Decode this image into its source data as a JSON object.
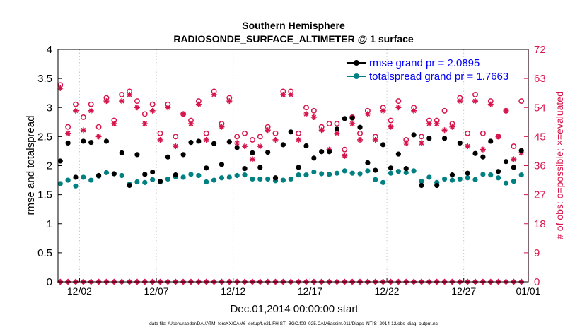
{
  "chart_data": {
    "type": "scatter",
    "title": "Southern Hemisphere",
    "subtitle": "RADIOSONDE_SURFACE_ALTIMETER @ 1 surface",
    "xlabel": "Dec.01,2014 00:00:00 start",
    "ylabel": "rmse and totalspread",
    "y2label": "# of obs: o=possible; ×=evaluated",
    "footnote": "data file: /Users/raeder/DAI/ATM_forcXX/CAM6_setup/f.e21.FHIST_BGC.f09_025.CAM6assim.011/Diags_NTrS_2014-12/obs_diag_output.nc",
    "xlim": [
      0.6,
      31.2
    ],
    "ylim": [
      0,
      4
    ],
    "y2lim": [
      0,
      72
    ],
    "x_ticks": [
      {
        "pos": 2,
        "label": "12/02"
      },
      {
        "pos": 7,
        "label": "12/07"
      },
      {
        "pos": 12,
        "label": "12/12"
      },
      {
        "pos": 17,
        "label": "12/17"
      },
      {
        "pos": 22,
        "label": "12/22"
      },
      {
        "pos": 27,
        "label": "12/27"
      },
      {
        "pos": 32,
        "label": "01/01"
      }
    ],
    "y_ticks": [
      "0",
      "0.5",
      "1",
      "1.5",
      "2",
      "2.5",
      "3",
      "3.5",
      "4"
    ],
    "y2_ticks": [
      "0",
      "9",
      "18",
      "27",
      "36",
      "45",
      "54",
      "63",
      "72"
    ],
    "legend": [
      {
        "label": "rmse grand pr = 2.0895",
        "color": "#000000"
      },
      {
        "label": "totalspread grand pr = 1.7663",
        "color": "#008080"
      }
    ],
    "series": [
      {
        "name": "rmse",
        "axis": "left",
        "color": "#000000",
        "x": [
          0.75,
          1.25,
          1.75,
          2.25,
          2.75,
          3.25,
          3.75,
          4.25,
          4.75,
          5.25,
          5.75,
          6.25,
          6.75,
          7.25,
          7.75,
          8.25,
          8.75,
          9.25,
          9.75,
          10.25,
          10.75,
          11.25,
          11.75,
          12.25,
          12.75,
          13.25,
          13.75,
          14.25,
          14.75,
          15.25,
          15.75,
          16.25,
          16.75,
          17.25,
          17.75,
          18.25,
          18.75,
          19.25,
          19.75,
          20.25,
          20.75,
          21.25,
          21.75,
          22.25,
          22.75,
          23.25,
          23.75,
          24.25,
          24.75,
          25.25,
          25.75,
          26.25,
          26.75,
          27.25,
          27.75,
          28.25,
          28.75,
          29.25,
          29.75,
          30.25,
          30.75
        ],
        "values": [
          2.08,
          2.39,
          1.8,
          2.42,
          2.4,
          1.83,
          2.42,
          1.86,
          2.22,
          1.66,
          2.19,
          1.85,
          1.89,
          1.73,
          2.15,
          1.84,
          2.19,
          2.4,
          2.42,
          1.96,
          2.38,
          2.02,
          2.41,
          2.31,
          1.95,
          2.22,
          1.97,
          2.23,
          1.79,
          2.36,
          2.58,
          1.97,
          2.34,
          2.13,
          2.24,
          2.24,
          2.63,
          2.81,
          2.82,
          2.66,
          2.05,
          1.92,
          2.36,
          1.96,
          2.2,
          1.95,
          2.53,
          1.66,
          2.47,
          1.66,
          2.47,
          1.84,
          2.39,
          1.87,
          2.21,
          2.15,
          2.42,
          1.9,
          2.07,
          1.97,
          2.26
        ]
      },
      {
        "name": "totalspread",
        "axis": "left",
        "color": "#008080",
        "x": [
          0.75,
          1.25,
          1.75,
          2.25,
          2.75,
          3.25,
          3.75,
          4.25,
          4.75,
          5.25,
          5.75,
          6.25,
          6.75,
          7.25,
          7.75,
          8.25,
          8.75,
          9.25,
          9.75,
          10.25,
          10.75,
          11.25,
          11.75,
          12.25,
          12.75,
          13.25,
          13.75,
          14.25,
          14.75,
          15.25,
          15.75,
          16.25,
          16.75,
          17.25,
          17.75,
          18.25,
          18.75,
          19.25,
          19.75,
          20.25,
          20.75,
          21.25,
          21.75,
          22.25,
          22.75,
          23.25,
          23.75,
          24.25,
          24.75,
          25.25,
          25.75,
          26.25,
          26.75,
          27.25,
          27.75,
          28.25,
          28.75,
          29.25,
          29.75,
          30.25,
          30.75
        ],
        "values": [
          1.69,
          1.75,
          1.65,
          1.8,
          1.75,
          1.82,
          1.88,
          1.86,
          1.83,
          1.68,
          1.72,
          1.71,
          1.76,
          1.72,
          1.77,
          1.81,
          1.8,
          1.85,
          1.83,
          1.72,
          1.75,
          1.79,
          1.8,
          1.83,
          1.84,
          1.77,
          1.77,
          1.77,
          1.74,
          1.75,
          1.77,
          1.84,
          1.84,
          1.89,
          1.86,
          1.85,
          1.87,
          1.91,
          1.87,
          1.86,
          1.91,
          1.76,
          1.71,
          1.87,
          1.9,
          1.88,
          1.91,
          1.73,
          1.8,
          1.71,
          1.77,
          1.75,
          1.77,
          1.79,
          1.76,
          1.85,
          1.84,
          1.79,
          1.7,
          1.73,
          1.84
        ]
      },
      {
        "name": "obs possible",
        "axis": "right",
        "color": "#d6154c",
        "x": [
          0.75,
          1.25,
          1.75,
          2.25,
          2.75,
          3.25,
          3.75,
          4.25,
          4.75,
          5.25,
          5.75,
          6.25,
          6.75,
          7.25,
          7.75,
          8.25,
          8.75,
          9.25,
          9.75,
          10.25,
          10.75,
          11.25,
          11.75,
          12.25,
          12.75,
          13.25,
          13.75,
          14.25,
          14.75,
          15.25,
          15.75,
          16.25,
          16.75,
          17.25,
          17.75,
          18.25,
          18.75,
          19.25,
          19.75,
          20.25,
          20.75,
          21.25,
          21.75,
          22.25,
          22.75,
          23.25,
          23.75,
          24.25,
          24.75,
          25.25,
          25.75,
          26.25,
          26.75,
          27.25,
          27.75,
          28.25,
          28.75,
          29.25,
          29.75,
          30.25,
          30.75
        ],
        "values": [
          61,
          48,
          55,
          51,
          55,
          48,
          57,
          50,
          58,
          59,
          56,
          52,
          55,
          46,
          55,
          45,
          52,
          50,
          56,
          46,
          59,
          49,
          57,
          45,
          46,
          44,
          45,
          48,
          46,
          59,
          59,
          46,
          54,
          53,
          48,
          49,
          49,
          41,
          51,
          46,
          53,
          45,
          54,
          50,
          56,
          44,
          54,
          45,
          50,
          50,
          53,
          49,
          57,
          46,
          58,
          46,
          56,
          45,
          53,
          42,
          56
        ]
      },
      {
        "name": "obs evaluated",
        "axis": "right",
        "color": "#d6154c",
        "x": [
          0.75,
          1.25,
          1.75,
          2.25,
          2.75,
          3.25,
          3.75,
          4.25,
          4.75,
          5.25,
          5.75,
          6.25,
          6.75,
          7.25,
          7.75,
          8.25,
          8.75,
          9.25,
          9.75,
          10.25,
          10.75,
          11.25,
          11.75,
          12.25,
          12.75,
          13.25,
          13.75,
          14.25,
          14.75,
          15.25,
          15.75,
          16.25,
          16.75,
          17.25,
          17.75,
          18.25,
          18.75,
          19.25,
          19.75,
          20.25,
          20.75,
          21.25,
          21.75,
          22.25,
          22.75,
          23.25,
          23.75,
          24.25,
          24.75,
          25.25,
          25.75,
          26.25,
          26.75,
          27.25,
          27.75,
          28.25,
          28.75,
          29.25,
          29.75,
          30.25,
          30.75
        ],
        "values": [
          60,
          46,
          53,
          47,
          53,
          45,
          56,
          49,
          56,
          58,
          54,
          49,
          53,
          44,
          54,
          42,
          52,
          49,
          55,
          44,
          58,
          48,
          56,
          43,
          42,
          38,
          42,
          47,
          44,
          58,
          58,
          44,
          52,
          51,
          47,
          41,
          46,
          39,
          49,
          44,
          52,
          44,
          53,
          48,
          54,
          43,
          53,
          43,
          49,
          49,
          47,
          48,
          56,
          42,
          56,
          41,
          55,
          45,
          53,
          38,
          40
        ]
      },
      {
        "name": "obs used (bottom)",
        "axis": "right",
        "color": "#d6154c",
        "x": [
          0.75,
          1.25,
          1.75,
          2.25,
          2.75,
          3.25,
          3.75,
          4.25,
          4.75,
          5.25,
          5.75,
          6.25,
          6.75,
          7.25,
          7.75,
          8.25,
          8.75,
          9.25,
          9.75,
          10.25,
          10.75,
          11.25,
          11.75,
          12.25,
          12.75,
          13.25,
          13.75,
          14.25,
          14.75,
          15.25,
          15.75,
          16.25,
          16.75,
          17.25,
          17.75,
          18.25,
          18.75,
          19.25,
          19.75,
          20.25,
          20.75,
          21.25,
          21.75,
          22.25,
          22.75,
          23.25,
          23.75,
          24.25,
          24.75,
          25.25,
          25.75,
          26.25,
          26.75,
          27.25,
          27.75,
          28.25,
          28.75,
          29.25,
          29.75,
          30.25,
          30.75
        ],
        "values": [
          0,
          0,
          0,
          0,
          0,
          0,
          0,
          0,
          0,
          0,
          0,
          0,
          0,
          0,
          0,
          0,
          0,
          0,
          0,
          0,
          0,
          0,
          0,
          0,
          0,
          0,
          0,
          0,
          0,
          0,
          0,
          0,
          0,
          0,
          0,
          0,
          0,
          0,
          0,
          0,
          0,
          0,
          0,
          0,
          0,
          0,
          0,
          0,
          0,
          0,
          0,
          0,
          0,
          0,
          0,
          0,
          0,
          0,
          0,
          0,
          0
        ]
      }
    ]
  }
}
